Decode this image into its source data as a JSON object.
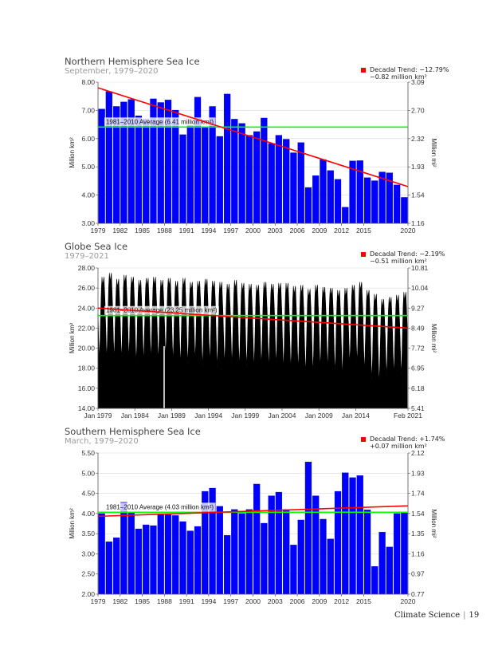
{
  "chart_data": [
    {
      "id": "north",
      "type": "bar",
      "title": "Northern Hemisphere Sea Ice",
      "subtitle": "September, 1979–2020",
      "ylabel_left": "Million km²",
      "ylabel_right": "Million mi²",
      "ylim": [
        3.0,
        8.0
      ],
      "yticks_left": [
        "8.00",
        "7.00",
        "6.00",
        "5.00",
        "4.00",
        "3.00"
      ],
      "yticks_right": [
        "3.09",
        "2.70",
        "2.32",
        "1.93",
        "1.54",
        "1.16"
      ],
      "x": [
        1979,
        1980,
        1981,
        1982,
        1983,
        1984,
        1985,
        1986,
        1987,
        1988,
        1989,
        1990,
        1991,
        1992,
        1993,
        1994,
        1995,
        1996,
        1997,
        1998,
        1999,
        2000,
        2001,
        2002,
        2003,
        2004,
        2005,
        2006,
        2007,
        2008,
        2009,
        2010,
        2011,
        2012,
        2013,
        2014,
        2015,
        2016,
        2017,
        2018,
        2019,
        2020
      ],
      "xticks": [
        "1979",
        "1982",
        "1985",
        "1988",
        "1991",
        "1994",
        "1997",
        "2000",
        "2003",
        "2006",
        "2009",
        "2012",
        "2015",
        "2020"
      ],
      "values": [
        7.05,
        7.67,
        7.14,
        7.3,
        7.39,
        6.81,
        6.7,
        7.41,
        7.28,
        7.37,
        7.01,
        6.14,
        6.47,
        7.47,
        6.4,
        7.14,
        6.08,
        7.58,
        6.69,
        6.54,
        6.12,
        6.25,
        6.73,
        5.83,
        6.12,
        5.98,
        5.5,
        5.86,
        4.27,
        4.69,
        5.26,
        4.87,
        4.56,
        3.57,
        5.21,
        5.22,
        4.62,
        4.51,
        4.82,
        4.79,
        4.36,
        3.92
      ],
      "average": 6.41,
      "average_label": "1981–2010 Average (6.41 million km²)",
      "trend": [
        7.8,
        4.3
      ],
      "legend_label": "Decadal Trend: −12.79%",
      "legend_label2": "−0.82 million km²",
      "colors": {
        "bar": "#0000ff",
        "trend": "#ff0000",
        "average": "#00ff00"
      }
    },
    {
      "id": "globe",
      "type": "area",
      "title": "Globe Sea Ice",
      "subtitle": "1979–2021",
      "ylabel_left": "Million km²",
      "ylabel_right": "Million mi²",
      "ylim": [
        14.0,
        28.0
      ],
      "yticks_left": [
        "28.00",
        "26.00",
        "24.00",
        "22.00",
        "20.00",
        "18.00",
        "16.00",
        "14.00"
      ],
      "yticks_right": [
        "10.81",
        "10.04",
        "9.27",
        "8.49",
        "7.72",
        "6.95",
        "6.18",
        "5.41"
      ],
      "xticks": [
        "Jan 1979",
        "Jan 1984",
        "Jan 1989",
        "Jan 1994",
        "Jan 1999",
        "Jan 2004",
        "Jan 2009",
        "Jan 2014",
        "Feb 2021"
      ],
      "x_range": [
        1979.0,
        2021.1
      ],
      "annual_max": [
        27.1,
        27.5,
        26.9,
        27.3,
        27.1,
        26.8,
        27.0,
        27.1,
        26.8,
        27.0,
        26.7,
        27.0,
        26.6,
        26.7,
        26.9,
        26.7,
        26.6,
        26.4,
        26.8,
        26.5,
        26.4,
        26.3,
        26.6,
        26.4,
        26.5,
        26.5,
        26.2,
        26.3,
        25.9,
        26.3,
        26.1,
        26.0,
        25.8,
        26.0,
        26.3,
        26.6,
        25.8,
        25.4,
        24.9,
        25.1,
        25.3,
        25.6
      ],
      "annual_min": [
        18.9,
        18.8,
        19.0,
        18.8,
        19.0,
        18.5,
        18.6,
        18.9,
        18.7,
        19.2,
        18.7,
        18.3,
        18.4,
        18.8,
        18.1,
        18.6,
        18.0,
        18.4,
        18.3,
        18.2,
        18.1,
        18.0,
        18.2,
        18.0,
        18.3,
        17.9,
        17.8,
        17.9,
        17.4,
        17.5,
        18.0,
        18.0,
        17.6,
        17.2,
        18.4,
        18.5,
        17.7,
        16.8,
        16.4,
        17.2,
        17.4,
        17.2
      ],
      "data_gap": [
        1987.9,
        1988.05
      ],
      "average": 23.25,
      "average_label": "1981–2010 Average (23.25 million km²)",
      "trend": [
        24.0,
        22.0
      ],
      "legend_label": "Decadal Trend: −2.19%",
      "legend_label2": "−0.51 million km²",
      "colors": {
        "area": "#000000",
        "trend": "#ff0000",
        "average": "#00ff00"
      }
    },
    {
      "id": "south",
      "type": "bar",
      "title": "Southern Hemisphere Sea Ice",
      "subtitle": "March, 1979–2020",
      "ylabel_left": "Million km²",
      "ylabel_right": "Million mi²",
      "ylim": [
        2.0,
        5.5
      ],
      "yticks_left": [
        "5.50",
        "5.00",
        "4.50",
        "4.00",
        "3.50",
        "3.00",
        "2.50",
        "2.00"
      ],
      "yticks_right": [
        "2.12",
        "1.93",
        "1.74",
        "1.54",
        "1.35",
        "1.16",
        "0.97",
        "0.77"
      ],
      "x": [
        1979,
        1980,
        1981,
        1982,
        1983,
        1984,
        1985,
        1986,
        1987,
        1988,
        1989,
        1990,
        1991,
        1992,
        1993,
        1994,
        1995,
        1996,
        1997,
        1998,
        1999,
        2000,
        2001,
        2002,
        2003,
        2004,
        2005,
        2006,
        2007,
        2008,
        2009,
        2010,
        2011,
        2012,
        2013,
        2014,
        2015,
        2016,
        2017,
        2018,
        2019,
        2020
      ],
      "xticks": [
        "1979",
        "1982",
        "1985",
        "1988",
        "1991",
        "1994",
        "1997",
        "2000",
        "2003",
        "2006",
        "2009",
        "2012",
        "2015",
        "2020"
      ],
      "values": [
        4.0,
        3.3,
        3.4,
        4.28,
        4.02,
        3.62,
        3.72,
        3.7,
        3.99,
        3.97,
        3.95,
        3.8,
        3.57,
        3.68,
        4.55,
        4.63,
        4.18,
        3.46,
        4.1,
        4.0,
        4.1,
        4.73,
        3.76,
        4.44,
        4.53,
        4.1,
        3.22,
        3.84,
        5.28,
        4.44,
        3.86,
        3.37,
        4.55,
        5.01,
        4.89,
        4.94,
        4.09,
        2.69,
        3.54,
        3.17,
        4.0,
        4.03
      ],
      "average": 4.03,
      "average_label": "1981–2010 Average (4.03 million km²)",
      "trend": [
        3.93,
        4.19
      ],
      "legend_label": "Decadal Trend: +1.74%",
      "legend_label2": "+0.07 million km²",
      "colors": {
        "bar": "#0000ff",
        "trend": "#ff0000",
        "average": "#00ff00"
      }
    }
  ],
  "footer": {
    "section": "Climate Science",
    "page": "19"
  }
}
